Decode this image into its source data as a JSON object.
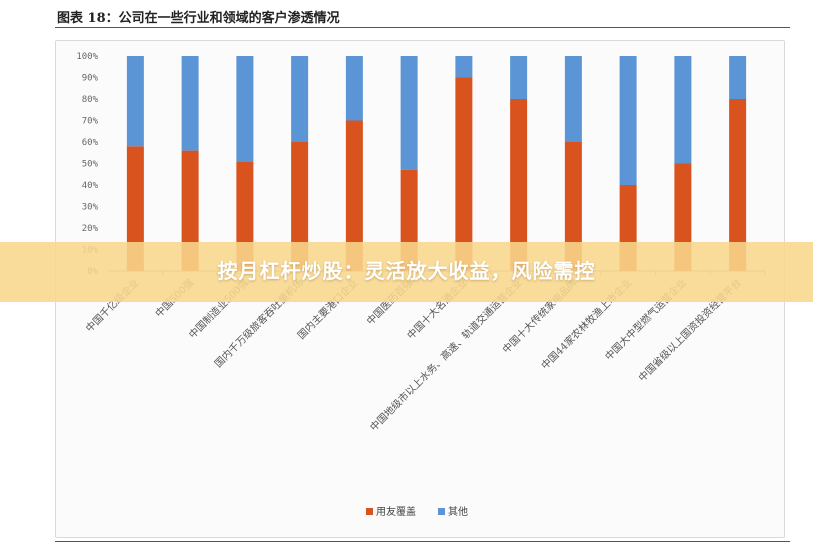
{
  "figure_title": "图表 18：公司在一些行业和领域的客户渗透情况",
  "banner": {
    "text": "按月杠杆炒股：灵活放大收益，风险需控"
  },
  "colors": {
    "primary": "#d9531e",
    "other": "#5b95d6",
    "banner": "#f8d68c"
  },
  "chart_data": {
    "type": "bar",
    "stacked": true,
    "categories": [
      "中国千亿级企业",
      "中国500强",
      "中国制造业500强",
      "国内千万级旅客吞吐量机场",
      "国内主要港口企业",
      "中国医药百强",
      "中国十大名酒企业",
      "中国地级市以上水务、高速、轨道交通运营企业",
      "中国十大传统家电品牌",
      "中国44家农林牧渔上市企业",
      "中国大中型燃气运营企业",
      "中国省级以上国资投资经营平台"
    ],
    "series": [
      {
        "name": "用友覆盖",
        "values": [
          58,
          56,
          51,
          60,
          70,
          47,
          90,
          80,
          60,
          40,
          50,
          80
        ]
      },
      {
        "name": "其他",
        "values": [
          42,
          44,
          49,
          40,
          30,
          53,
          10,
          20,
          40,
          60,
          50,
          20
        ]
      }
    ],
    "y_ticks": [
      "0%",
      "10%",
      "20%",
      "30%",
      "40%",
      "50%",
      "60%",
      "70%",
      "80%",
      "90%",
      "100%"
    ],
    "ylim": [
      0,
      100
    ],
    "legend_position": "bottom"
  }
}
